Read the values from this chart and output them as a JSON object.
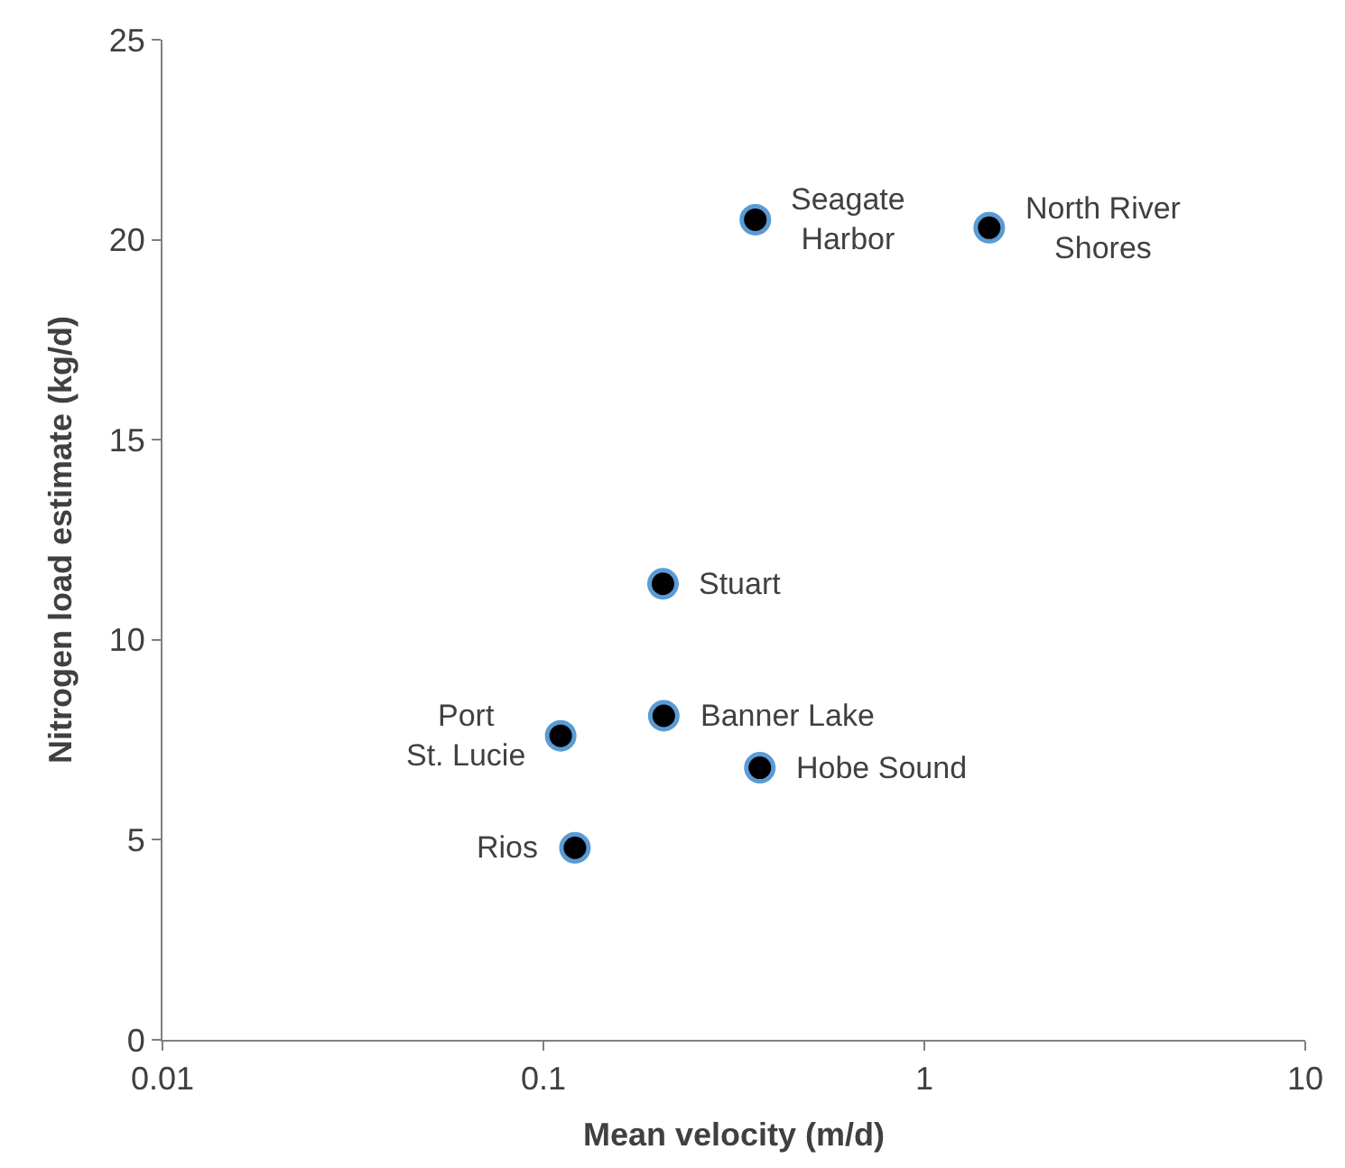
{
  "chart_data": {
    "type": "scatter",
    "xlabel": "Mean velocity (m/d)",
    "ylabel": "Nitrogen load estimate (kg/d)",
    "log": "x",
    "xlim": [
      0.01,
      10
    ],
    "xticks": [
      0.01,
      0.1,
      1,
      10
    ],
    "ylim": [
      0,
      25
    ],
    "yticks": [
      0,
      5,
      10,
      15,
      20,
      25
    ],
    "grid": false,
    "legend": false,
    "marker": "circle",
    "series": [
      {
        "color": "#000000",
        "x": [
          0.36,
          1.48,
          0.206,
          0.207,
          0.111,
          0.37,
          0.121
        ],
        "values": [
          20.5,
          20.3,
          11.4,
          8.1,
          7.6,
          6.8,
          4.8
        ]
      }
    ],
    "annotations": [
      {
        "text": "Seagate\nHarbor",
        "x": 0.36,
        "y": 20.5
      },
      {
        "text": "North River\nShores",
        "x": 1.48,
        "y": 20.3
      },
      {
        "text": "Stuart",
        "x": 0.206,
        "y": 11.4
      },
      {
        "text": "Banner Lake",
        "x": 0.207,
        "y": 8.1
      },
      {
        "text": "Port\nSt. Lucie",
        "x": 0.111,
        "y": 7.6
      },
      {
        "text": "Hobe Sound",
        "x": 0.37,
        "y": 6.8
      },
      {
        "text": "Rios",
        "x": 0.121,
        "y": 4.8
      }
    ]
  }
}
